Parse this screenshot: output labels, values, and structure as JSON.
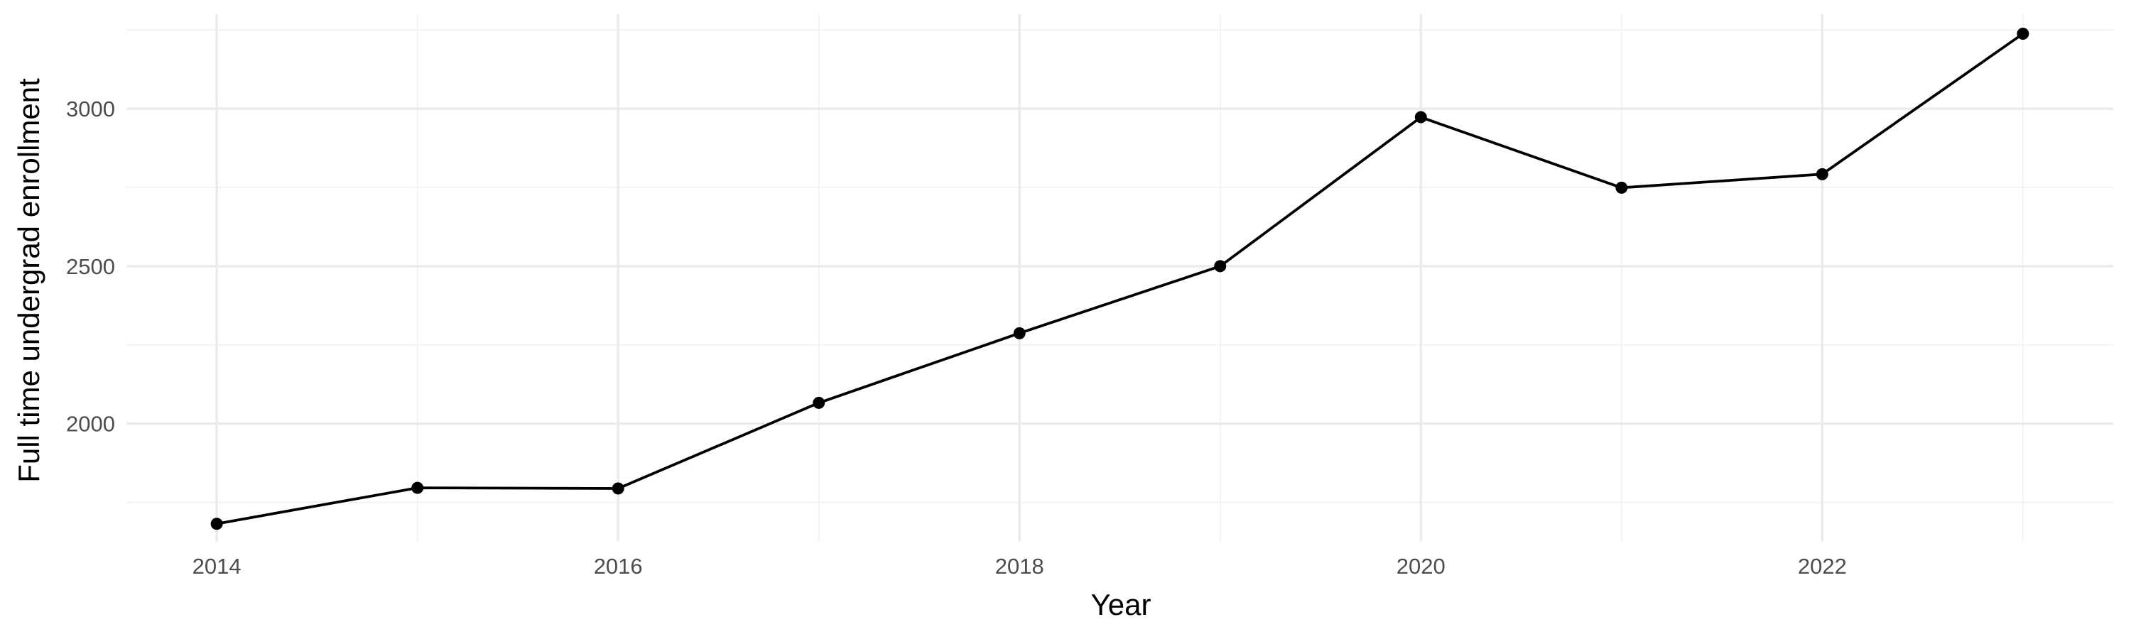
{
  "chart_data": {
    "type": "line",
    "title": "",
    "xlabel": "Year",
    "ylabel": "Full time undergrad enrollment",
    "x": [
      2014,
      2015,
      2016,
      2017,
      2018,
      2019,
      2020,
      2021,
      2022,
      2023
    ],
    "series": [
      {
        "values": [
          1682,
          1796,
          1794,
          2066,
          2287,
          2500,
          2973,
          2749,
          2792,
          3238
        ]
      }
    ],
    "xlim": [
      2013.55,
      2023.45
    ],
    "ylim": [
      1625,
      3300
    ],
    "x_major_ticks": [
      2014,
      2016,
      2018,
      2020,
      2022
    ],
    "x_minor_ticks": [
      2015,
      2017,
      2019,
      2021,
      2023
    ],
    "x_tick_labels": [
      "2014",
      "2016",
      "2018",
      "2020",
      "2022"
    ],
    "y_major_ticks": [
      2000,
      2500,
      3000
    ],
    "y_minor_ticks": [
      1750,
      2250,
      2750,
      3250
    ],
    "y_tick_labels": [
      "2000",
      "2500",
      "3000"
    ],
    "grid": true,
    "legend": "none",
    "colors": {
      "line": "#000000",
      "points": "#000000",
      "grid_major": "#ebebeb",
      "grid_minor": "#f2f2f2",
      "tick_text": "#4d4d4d",
      "background": "#ffffff"
    }
  }
}
